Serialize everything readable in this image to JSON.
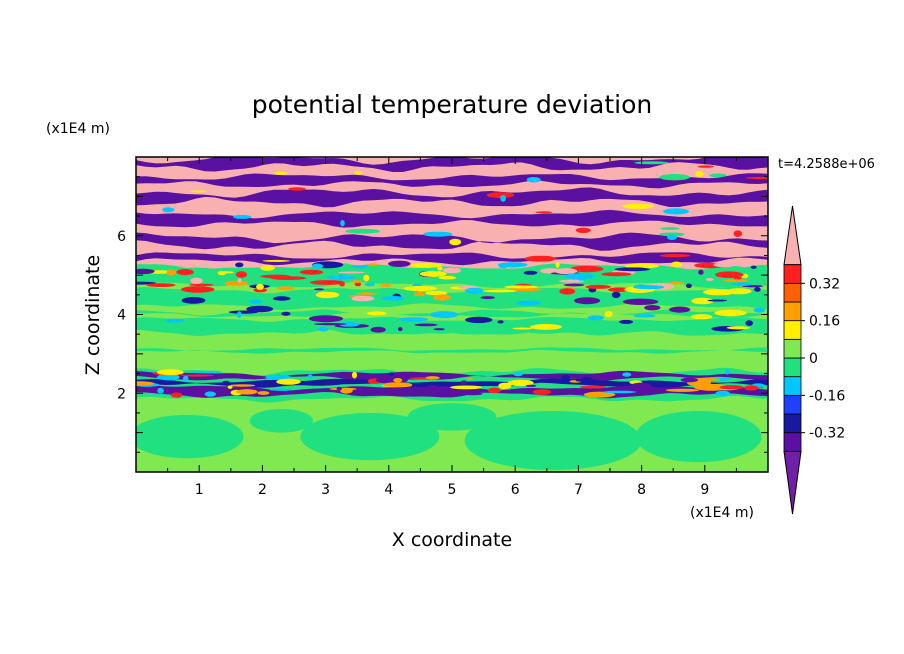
{
  "chart_data": {
    "type": "heatmap",
    "title": "potential temperature deviation",
    "xlabel": "X coordinate",
    "ylabel": "Z coordinate",
    "x_unit": "(x1E4 m)",
    "y_unit": "(x1E4 m)",
    "timestamp": "t=4.2588e+06",
    "xlim": [
      0,
      10
    ],
    "ylim": [
      0,
      8
    ],
    "x_ticks": [
      "1",
      "2",
      "3",
      "4",
      "5",
      "6",
      "7",
      "8",
      "9"
    ],
    "y_ticks": [
      "2",
      "4",
      "6"
    ],
    "colorbar": {
      "levels": [
        -0.48,
        -0.4,
        -0.32,
        -0.24,
        -0.16,
        -0.08,
        0,
        0.08,
        0.16,
        0.24,
        0.32,
        0.4,
        0.48
      ],
      "colors": [
        "#7020a8",
        "#5a10a0",
        "#1818a0",
        "#2040ff",
        "#00c8ff",
        "#20e080",
        "#80e850",
        "#fff000",
        "#ffa000",
        "#ff6000",
        "#ff2020",
        "#f8b0b0"
      ],
      "tick_labels": [
        "0.32",
        "0.16",
        "0",
        "-0.16",
        "-0.32"
      ]
    },
    "layers": [
      {
        "z_range": [
          0,
          1.9
        ],
        "dominant": [
          "#80e850",
          "#20e080"
        ]
      },
      {
        "z_range": [
          1.9,
          2.5
        ],
        "dominant": [
          "#20e080",
          "#5a10a0",
          "#1818a0",
          "#ff2020",
          "#fff000"
        ]
      },
      {
        "z_range": [
          2.5,
          3.6
        ],
        "dominant": [
          "#80e850",
          "#20e080"
        ]
      },
      {
        "z_range": [
          3.6,
          5.2
        ],
        "dominant": [
          "#20e080",
          "#80e850",
          "#00c8ff",
          "#1818a0",
          "#fff000"
        ]
      },
      {
        "z_range": [
          5.2,
          8
        ],
        "dominant": [
          "#f8b0b0",
          "#5a10a0"
        ]
      }
    ]
  }
}
